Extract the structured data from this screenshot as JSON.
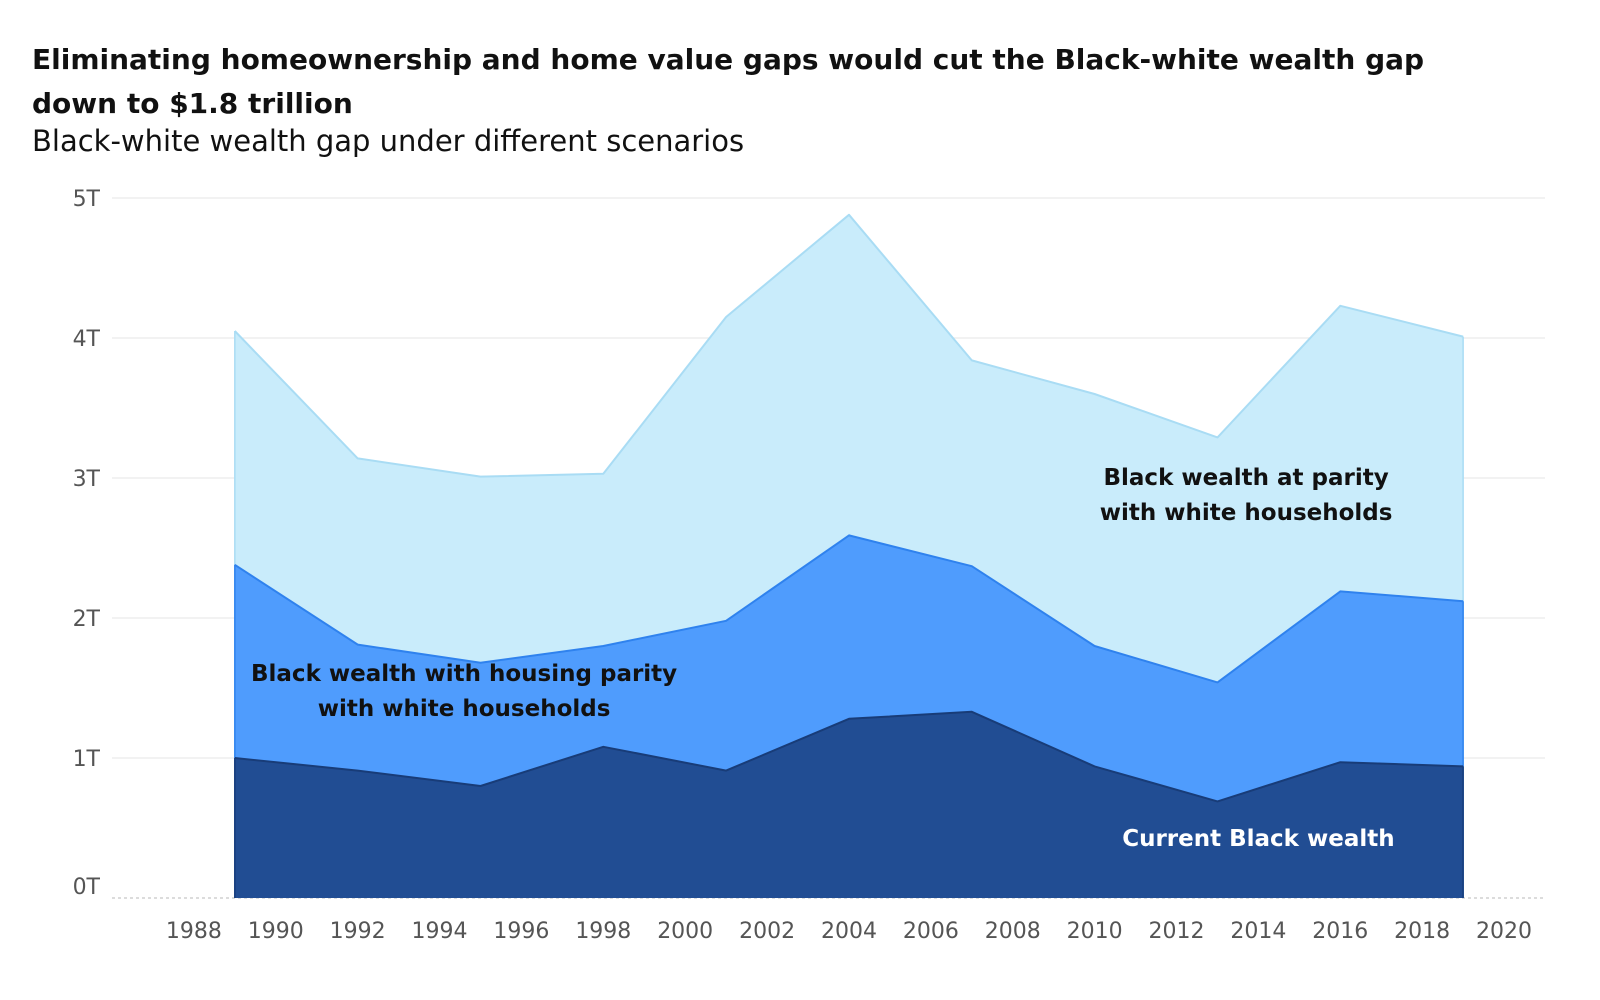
{
  "header": {
    "title": "Eliminating homeownership and home value gaps would cut the Black-white wealth gap down to $1.8 trillion",
    "subtitle": "Black-white wealth gap under different scenarios"
  },
  "colors": {
    "parity": "#c9ecfb",
    "parity_line": "#a9dcf4",
    "housing": "#4f9cfd",
    "housing_line": "#2f82ee",
    "current": "#214d93",
    "current_line": "#183c78",
    "grid": "#e9e9e9",
    "axis_text": "#555555"
  },
  "chart_data": {
    "type": "area",
    "title": "Eliminating homeownership and home value gaps would cut the Black-white wealth gap down to $1.8 trillion",
    "subtitle": "Black-white wealth gap under different scenarios",
    "xlabel": "",
    "ylabel": "",
    "x": [
      1989,
      1992,
      1995,
      1998,
      2001,
      2004,
      2007,
      2010,
      2013,
      2016,
      2019
    ],
    "xlim": [
      1986,
      2021
    ],
    "ylim": [
      0,
      5
    ],
    "x_ticks": [
      1988,
      1990,
      1992,
      1994,
      1996,
      1998,
      2000,
      2002,
      2004,
      2006,
      2008,
      2010,
      2012,
      2014,
      2016,
      2018,
      2020
    ],
    "y_ticks": [
      0,
      1,
      2,
      3,
      4,
      5
    ],
    "y_tick_labels": [
      "0T",
      "1T",
      "2T",
      "3T",
      "4T",
      "5T"
    ],
    "grid": true,
    "series": [
      {
        "key": "parity",
        "name": "Black wealth at parity with white households",
        "label_lines": [
          "Black wealth at parity",
          "with white households"
        ],
        "values": [
          4.05,
          3.14,
          3.01,
          3.03,
          4.15,
          4.88,
          3.84,
          3.6,
          3.29,
          4.23,
          4.01
        ]
      },
      {
        "key": "housing",
        "name": "Black wealth with housing parity with white households",
        "label_lines": [
          "Black wealth with housing parity",
          "with white households"
        ],
        "values": [
          2.38,
          1.81,
          1.68,
          1.8,
          1.98,
          2.59,
          2.37,
          1.8,
          1.54,
          2.19,
          2.12
        ]
      },
      {
        "key": "current",
        "name": "Current Black wealth",
        "label_lines": [
          "Current Black wealth"
        ],
        "values": [
          1.0,
          0.91,
          0.8,
          1.08,
          0.91,
          1.28,
          1.33,
          0.94,
          0.69,
          0.97,
          0.94
        ]
      }
    ]
  }
}
